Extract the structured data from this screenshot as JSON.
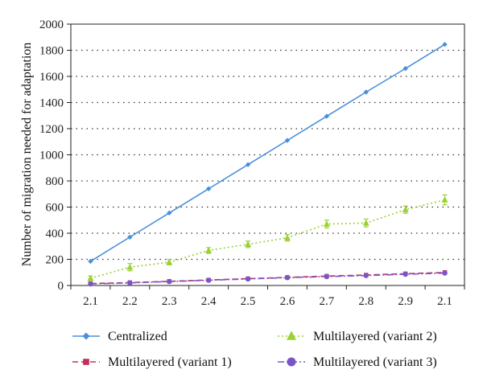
{
  "chart_data": {
    "type": "line",
    "title": "",
    "xlabel": "",
    "ylabel": "Number of migration needed for adaptation",
    "categories": [
      "2.1",
      "2.2",
      "2.3",
      "2.4",
      "2.5",
      "2.6",
      "2.7",
      "2.8",
      "2.9",
      "2.1"
    ],
    "ylim": [
      0,
      2000
    ],
    "yticks": [
      0,
      200,
      400,
      600,
      800,
      1000,
      1200,
      1400,
      1600,
      1800,
      2000
    ],
    "grid": "horizontal dotted",
    "legend_position": "bottom",
    "series": [
      {
        "name": "Centralized",
        "color": "#4a8fdc",
        "marker": "diamond",
        "line_style": "solid",
        "values": [
          185,
          370,
          555,
          740,
          925,
          1110,
          1295,
          1480,
          1660,
          1845
        ]
      },
      {
        "name": "Multilayered (variant 1)",
        "color": "#c0325a",
        "marker": "square",
        "line_style": "dashed",
        "values": [
          15,
          22,
          32,
          42,
          52,
          62,
          72,
          80,
          90,
          100
        ]
      },
      {
        "name": "Multilayered (variant 2)",
        "color": "#9bd135",
        "marker": "triangle",
        "line_style": "dotted",
        "values": [
          55,
          140,
          178,
          268,
          315,
          365,
          470,
          478,
          580,
          655
        ],
        "errors": [
          18,
          28,
          20,
          22,
          25,
          25,
          30,
          30,
          28,
          38
        ]
      },
      {
        "name": "Multilayered (variant 3)",
        "color": "#7b55c8",
        "marker": "circle",
        "line_style": "dashdot",
        "values": [
          12,
          20,
          30,
          40,
          50,
          60,
          68,
          76,
          86,
          95
        ]
      }
    ]
  }
}
